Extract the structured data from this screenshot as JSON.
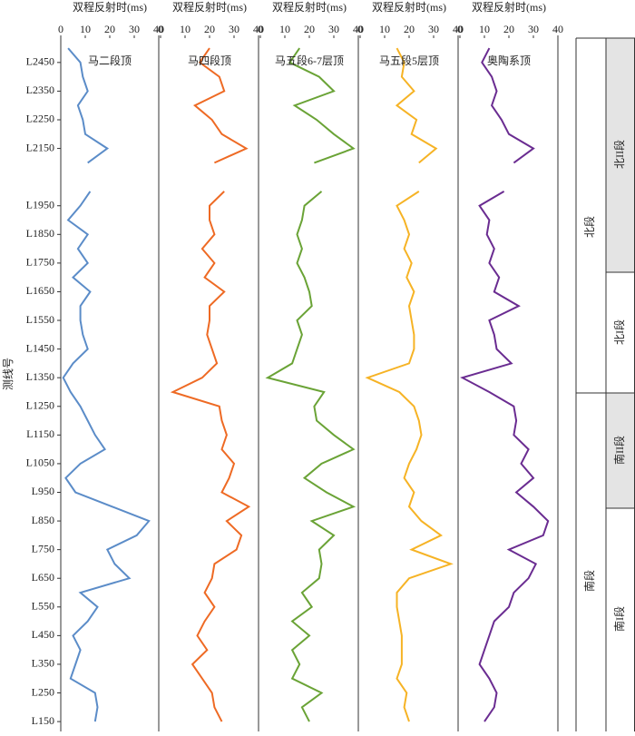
{
  "chart_data": [
    {
      "type": "line",
      "xlabel": "双程反射时(ms)",
      "ylabel": "测线号",
      "xlim": [
        0,
        40
      ],
      "xticks": [
        0,
        10,
        20,
        30,
        40
      ],
      "ylim": [
        125,
        2535
      ],
      "yticks": [
        {
          "value": 2450,
          "label": "L2450"
        },
        {
          "value": 2350,
          "label": "L2350"
        },
        {
          "value": 2250,
          "label": "L2250"
        },
        {
          "value": 2150,
          "label": "L2150"
        },
        {
          "value": 1950,
          "label": "L1950"
        },
        {
          "value": 1850,
          "label": "L1850"
        },
        {
          "value": 1750,
          "label": "L1750"
        },
        {
          "value": 1650,
          "label": "L1650"
        },
        {
          "value": 1550,
          "label": "L1550"
        },
        {
          "value": 1450,
          "label": "L1450"
        },
        {
          "value": 1350,
          "label": "L1350"
        },
        {
          "value": 1250,
          "label": "L1250"
        },
        {
          "value": 1150,
          "label": "L1150"
        },
        {
          "value": 1050,
          "label": "L1050"
        },
        {
          "value": 950,
          "label": "L950"
        },
        {
          "value": 850,
          "label": "L850"
        },
        {
          "value": 750,
          "label": "L750"
        },
        {
          "value": 650,
          "label": "L650"
        },
        {
          "value": 550,
          "label": "L550"
        },
        {
          "value": 450,
          "label": "L450"
        },
        {
          "value": 350,
          "label": "L350"
        },
        {
          "value": 250,
          "label": "L250"
        },
        {
          "value": 150,
          "label": "L150"
        }
      ],
      "y": [
        2500,
        2450,
        2400,
        2350,
        2300,
        2250,
        2200,
        2150,
        2100,
        2050,
        2000,
        1950,
        1900,
        1850,
        1800,
        1750,
        1700,
        1650,
        1600,
        1550,
        1500,
        1450,
        1400,
        1350,
        1300,
        1250,
        1200,
        1150,
        1100,
        1050,
        1000,
        950,
        900,
        850,
        800,
        750,
        700,
        650,
        600,
        550,
        500,
        450,
        400,
        350,
        300,
        250,
        200,
        150
      ],
      "series": [
        {
          "name": "马二段顶",
          "color": "#5b8cc8",
          "values": [
            3,
            8,
            9,
            11,
            7,
            9,
            10,
            19,
            11,
            null,
            12,
            8,
            3,
            11,
            7,
            11,
            5,
            12,
            8,
            8,
            9,
            11,
            5,
            1,
            4,
            8,
            11,
            14,
            18,
            8,
            2,
            6,
            21,
            36,
            31,
            19,
            22,
            28,
            8,
            15,
            11,
            5,
            8,
            6,
            4,
            14,
            15,
            14
          ]
        }
      ]
    },
    {
      "type": "line",
      "xlabel": "双程反射时(ms)",
      "xlim": [
        0,
        40
      ],
      "xticks": [
        0,
        10,
        20,
        30,
        40
      ],
      "series": [
        {
          "name": "马四段顶",
          "color": "#ee6a24",
          "values": [
            20,
            16,
            24,
            26,
            14,
            21,
            25,
            35,
            22,
            null,
            26,
            20,
            20,
            22,
            17,
            22,
            18,
            26,
            20,
            20,
            19,
            21,
            23,
            17,
            5,
            24,
            25,
            27,
            25,
            30,
            28,
            25,
            36,
            27,
            33,
            31,
            22,
            21,
            18,
            22,
            18,
            15,
            19,
            13,
            17,
            21,
            22,
            25
          ]
        }
      ]
    },
    {
      "type": "line",
      "xlabel": "双程反射时(ms)",
      "xlim": [
        0,
        40
      ],
      "xticks": [
        0,
        10,
        20,
        30,
        40
      ],
      "series": [
        {
          "name": "马五段6-7层顶",
          "color": "#6aa336",
          "values": [
            16,
            12,
            24,
            30,
            14,
            23,
            30,
            38,
            22,
            null,
            25,
            18,
            17,
            15,
            17,
            15,
            18,
            20,
            21,
            15,
            17,
            15,
            13,
            3,
            26,
            22,
            23,
            30,
            38,
            25,
            18,
            27,
            38,
            21,
            30,
            24,
            25,
            24,
            17,
            21,
            13,
            20,
            13,
            16,
            13,
            25,
            17,
            20
          ]
        }
      ]
    },
    {
      "type": "line",
      "xlabel": "双程反射时(ms)",
      "xlim": [
        0,
        40
      ],
      "xticks": [
        0,
        10,
        20,
        30,
        40
      ],
      "series": [
        {
          "name": "马五段5层顶",
          "color": "#f6b325",
          "values": [
            15,
            18,
            17,
            22,
            15,
            23,
            21,
            31,
            24,
            null,
            24,
            15,
            18,
            20,
            18,
            21,
            19,
            22,
            20,
            21,
            22,
            22,
            20,
            3,
            16,
            22,
            24,
            25,
            23,
            20,
            18,
            22,
            20,
            25,
            33,
            21,
            37,
            20,
            15,
            15,
            16,
            17,
            17,
            17,
            15,
            19,
            18,
            20
          ]
        }
      ]
    },
    {
      "type": "line",
      "xlabel": "双程反射时(ms)",
      "xlim": [
        0,
        40
      ],
      "xticks": [
        0,
        10,
        20,
        30,
        40
      ],
      "series": [
        {
          "name": "奥陶系顶",
          "color": "#6a2c91",
          "values": [
            12,
            9,
            13,
            15,
            13,
            17,
            20,
            30,
            22,
            null,
            18,
            8,
            12,
            11,
            14,
            12,
            16,
            14,
            24,
            12,
            14,
            15,
            21,
            1,
            12,
            22,
            23,
            22,
            28,
            25,
            30,
            23,
            30,
            36,
            34,
            20,
            31,
            28,
            22,
            20,
            14,
            12,
            10,
            8,
            12,
            15,
            14,
            10
          ]
        }
      ]
    }
  ],
  "strata": [
    {
      "label": "北段",
      "subs": [
        "北II段",
        "北I段"
      ]
    },
    {
      "label": "南段",
      "subs": [
        "南II段",
        "南I段"
      ]
    }
  ]
}
